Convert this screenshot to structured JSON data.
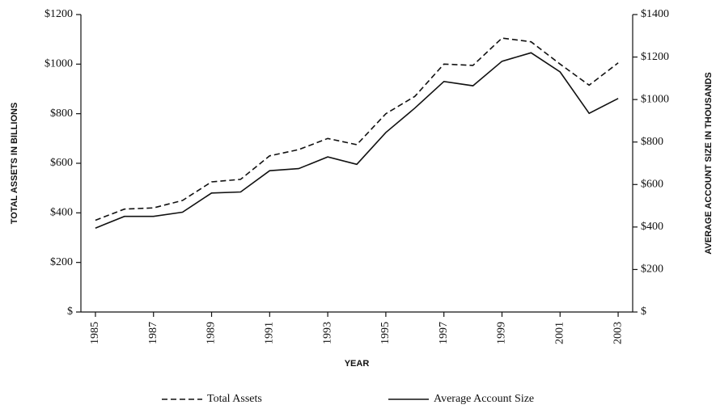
{
  "chart_data": {
    "type": "line",
    "x_label": "YEAR",
    "y_label": "TOTAL ASSETS IN BILLIONS",
    "y2_label": "AVERAGE ACCOUNT SIZE  IN THOUSANDS",
    "x": [
      1985,
      1986,
      1987,
      1988,
      1989,
      1990,
      1991,
      1992,
      1993,
      1994,
      1995,
      1996,
      1997,
      1998,
      1999,
      2000,
      2001,
      2002,
      2003
    ],
    "xlim": [
      1984.5,
      2003.5
    ],
    "xticks": [
      1985,
      1987,
      1989,
      1991,
      1993,
      1995,
      1997,
      1999,
      2001,
      2003
    ],
    "ylim": [
      0,
      1200
    ],
    "yticks": [
      {
        "value": 0,
        "label": "$"
      },
      {
        "value": 200,
        "label": "$200"
      },
      {
        "value": 400,
        "label": "$400"
      },
      {
        "value": 600,
        "label": "$600"
      },
      {
        "value": 800,
        "label": "$800"
      },
      {
        "value": 1000,
        "label": "$1000"
      },
      {
        "value": 1200,
        "label": "$1200"
      }
    ],
    "y2lim": [
      0,
      1400
    ],
    "y2ticks": [
      {
        "value": 0,
        "label": "$"
      },
      {
        "value": 200,
        "label": "$200"
      },
      {
        "value": 400,
        "label": "$400"
      },
      {
        "value": 600,
        "label": "$600"
      },
      {
        "value": 800,
        "label": "$800"
      },
      {
        "value": 1000,
        "label": "$1000"
      },
      {
        "value": 1200,
        "label": "$1200"
      },
      {
        "value": 1400,
        "label": "$1400"
      }
    ],
    "series": [
      {
        "name": "Total Assets",
        "color": "#111111",
        "dash": "dashed",
        "axis": "y",
        "values": [
          370,
          415,
          420,
          450,
          525,
          535,
          630,
          655,
          700,
          675,
          800,
          870,
          1000,
          995,
          1105,
          1090,
          1000,
          915,
          1005
        ]
      },
      {
        "name": "Average Account Size",
        "color": "#111111",
        "dash": "solid",
        "axis": "y2",
        "values": [
          395,
          450,
          450,
          470,
          560,
          565,
          665,
          675,
          730,
          695,
          845,
          960,
          1085,
          1065,
          1180,
          1220,
          1130,
          935,
          1005
        ]
      }
    ]
  }
}
